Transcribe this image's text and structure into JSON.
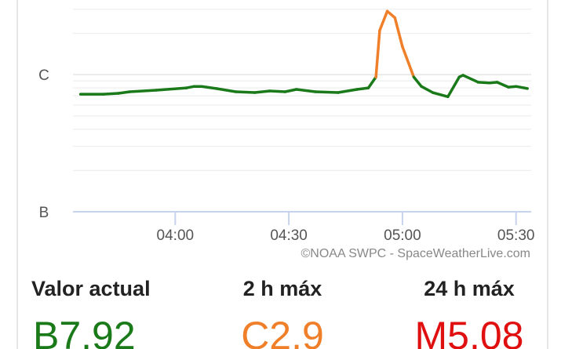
{
  "chart_data": {
    "type": "line",
    "x": [
      "03:35",
      "03:41",
      "03:45",
      "03:48",
      "03:55",
      "04:03",
      "04:05",
      "04:07",
      "04:11",
      "04:16",
      "04:21",
      "04:25",
      "04:29",
      "04:32",
      "04:37",
      "04:43",
      "04:48",
      "04:51",
      "04:53",
      "04:54",
      "04:56",
      "04:58",
      "05:00",
      "05:03",
      "05:05",
      "05:08",
      "05:12",
      "05:15",
      "05:16",
      "05:20",
      "05:23",
      "05:25",
      "05:28",
      "05:30",
      "05:33"
    ],
    "series": [
      {
        "colors": [
          "#1a7a1a",
          "#f07f2a"
        ],
        "values": [
          7.2e-07,
          7.2e-07,
          7.3e-07,
          7.5e-07,
          7.7e-07,
          8e-07,
          8.2e-07,
          8.2e-07,
          7.9e-07,
          7.5e-07,
          7.4e-07,
          7.6e-07,
          7.5e-07,
          7.8e-07,
          7.5e-07,
          7.4e-07,
          7.8e-07,
          8e-07,
          9.6e-07,
          2.1e-06,
          2.9e-06,
          2.6e-06,
          1.6e-06,
          9.6e-07,
          8.2e-07,
          7.4e-07,
          6.9e-07,
          9.6e-07,
          9.9e-07,
          8.8e-07,
          8.7e-07,
          8.8e-07,
          8.1e-07,
          8.2e-07,
          7.92e-07
        ]
      }
    ],
    "xlim": [
      "03:33",
      "05:34"
    ],
    "xticks": [
      "04:00",
      "04:30",
      "05:00",
      "05:30"
    ],
    "ylim": [
      1e-07,
      3.5e-06
    ],
    "yticks": [
      {
        "value": 1e-07,
        "label": "B"
      },
      {
        "value": 1e-06,
        "label": "C"
      }
    ],
    "yminor": [
      2e-07,
      3e-07,
      4e-07,
      5e-07,
      6e-07,
      7e-07,
      8e-07,
      9e-07,
      2e-06,
      3e-06
    ],
    "log_scale": true,
    "grid": true,
    "credit": "©NOAA SWPC - SpaceWeatherLive.com"
  },
  "stats": [
    {
      "label": "Valor actual",
      "value": "B7.92"
    },
    {
      "label": "2 h máx",
      "value": "C2.9"
    },
    {
      "label": "24 h máx",
      "value": "M5.08"
    }
  ]
}
